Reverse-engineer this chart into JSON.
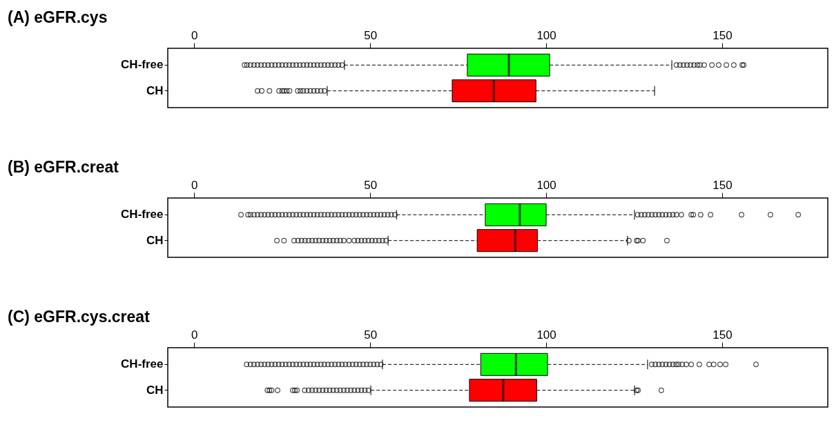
{
  "chart_data": [
    {
      "type": "box",
      "title": "(A) eGFR.cys",
      "orientation": "horizontal",
      "categories": [
        "CH-free",
        "CH"
      ],
      "colors": [
        "#00ff00",
        "#ff0000"
      ],
      "xlim": [
        -7.5,
        180
      ],
      "xticks": [
        0,
        50,
        100,
        150
      ],
      "boxes": [
        {
          "low": 42.7,
          "q1": 77.6,
          "median": 89.4,
          "q3": 101,
          "high": 135.7,
          "outliers": [
            14.3,
            15,
            16,
            17,
            18,
            19,
            20,
            21,
            22,
            23,
            24,
            25,
            26,
            27,
            28,
            29,
            30,
            31,
            32,
            33,
            34,
            35,
            36,
            37,
            38,
            39,
            40,
            41,
            42,
            137,
            138,
            139,
            140,
            141,
            142,
            143,
            143.7,
            144.9,
            147.1,
            149,
            151.2,
            153.3,
            155.7,
            156.1
          ]
        },
        {
          "low": 37.8,
          "q1": 73.3,
          "median": 85.1,
          "q3": 97.1,
          "high": 130.8,
          "outliers": [
            18,
            19.2,
            21.4,
            24.1,
            25,
            25.6,
            26.3,
            27.1,
            29.4,
            30.2,
            31,
            32,
            33,
            34,
            35,
            36,
            37
          ]
        }
      ]
    },
    {
      "type": "box",
      "title": "(B) eGFR.creat",
      "orientation": "horizontal",
      "categories": [
        "CH-free",
        "CH"
      ],
      "colors": [
        "#00ff00",
        "#ff0000"
      ],
      "xlim": [
        -7.5,
        180
      ],
      "xticks": [
        0,
        50,
        100,
        150
      ],
      "boxes": [
        {
          "low": 57.5,
          "q1": 82.7,
          "median": 92.5,
          "q3": 100,
          "high": 125.1,
          "outliers": [
            13.3,
            15.3,
            16,
            17,
            18,
            19,
            20,
            21,
            22,
            23,
            24,
            25,
            26,
            27,
            28,
            29,
            30,
            31,
            32,
            33,
            34,
            35,
            36,
            37,
            38,
            39,
            40,
            41,
            42,
            43,
            44,
            45,
            46,
            47,
            48,
            49,
            50,
            51,
            52,
            53,
            54,
            55,
            56,
            57,
            126,
            127,
            128,
            129,
            130,
            131,
            132,
            133,
            134,
            135,
            136,
            137,
            138.4,
            141.2,
            141.8,
            143.9,
            146.7,
            155.5,
            163.7,
            171.6
          ]
        },
        {
          "low": 55.1,
          "q1": 80.4,
          "median": 91.2,
          "q3": 97.5,
          "high": 123.1,
          "outliers": [
            23.5,
            25.5,
            28.4,
            29.5,
            30.5,
            31.5,
            32.5,
            33.5,
            34.5,
            35.5,
            36.5,
            37.5,
            38.5,
            39.5,
            40.5,
            41.5,
            42.5,
            44,
            45.5,
            46.5,
            47.5,
            48.5,
            49.5,
            50.5,
            51.5,
            52.5,
            53.5,
            54.5,
            123.5,
            125.7,
            126.1,
            127.5,
            134.3
          ]
        }
      ]
    },
    {
      "type": "box",
      "title": "(C) eGFR.cys.creat",
      "orientation": "horizontal",
      "categories": [
        "CH-free",
        "CH"
      ],
      "colors": [
        "#00ff00",
        "#ff0000"
      ],
      "xlim": [
        -7.5,
        180
      ],
      "xticks": [
        0,
        50,
        100,
        150
      ],
      "boxes": [
        {
          "low": 53.5,
          "q1": 81.4,
          "median": 91.4,
          "q3": 100.4,
          "high": 128.8,
          "outliers": [
            14.9,
            16,
            17,
            18,
            19,
            20,
            21,
            22,
            23,
            24,
            25,
            26,
            27,
            28,
            29,
            30,
            31,
            32,
            33,
            34,
            35,
            36,
            37,
            38,
            39,
            40,
            41,
            42,
            43,
            44,
            45,
            46,
            47,
            48,
            49,
            50,
            51,
            52,
            53,
            130,
            131,
            132,
            133,
            134,
            135,
            136,
            136.9,
            137.6,
            138.6,
            139.8,
            141.2,
            143.5,
            146.3,
            147.6,
            149.4,
            151,
            159.6
          ]
        },
        {
          "low": 50.2,
          "q1": 78.2,
          "median": 87.8,
          "q3": 97.3,
          "high": 125.1,
          "outliers": [
            20.8,
            21.4,
            22,
            23.7,
            28,
            28.6,
            29.2,
            31.4,
            32.5,
            33.5,
            34.5,
            35.5,
            36.5,
            37.5,
            38.5,
            39.5,
            40.5,
            41.5,
            42.5,
            43.5,
            44.5,
            45.5,
            46.5,
            47.5,
            48.5,
            49.5,
            125.7,
            126.1,
            132.7
          ]
        }
      ]
    }
  ]
}
